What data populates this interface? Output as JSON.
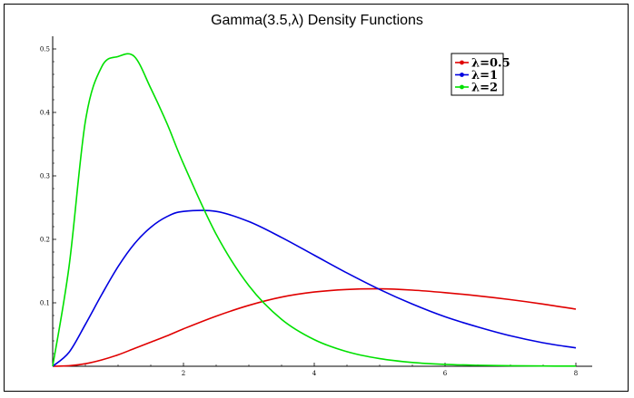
{
  "chart_data": {
    "type": "line",
    "title": "Gamma(3.5,λ) Density Functions",
    "xlabel": "",
    "ylabel": "",
    "xlim": [
      0,
      8.25
    ],
    "ylim": [
      0,
      0.52
    ],
    "grid": false,
    "legend_position": "top-right",
    "x_ticks": [
      {
        "value": 2,
        "label": "2"
      },
      {
        "value": 4,
        "label": "4"
      },
      {
        "value": 6,
        "label": "6"
      },
      {
        "value": 8,
        "label": "8"
      }
    ],
    "y_ticks": [
      {
        "value": 0.1,
        "label": "0.1"
      },
      {
        "value": 0.2,
        "label": "0.2"
      },
      {
        "value": 0.3,
        "label": "0.3"
      },
      {
        "value": 0.4,
        "label": "0.4"
      },
      {
        "value": 0.5,
        "label": "0.5"
      }
    ],
    "x": [
      0,
      0.25,
      0.5,
      0.75,
      1,
      1.25,
      1.5,
      1.75,
      2,
      2.5,
      3,
      3.5,
      4,
      4.5,
      5,
      5.5,
      6,
      6.5,
      7,
      7.5,
      8
    ],
    "series": [
      {
        "name": "λ=0.5",
        "color": "#e00000",
        "values": [
          0,
          0.0008,
          0.004,
          0.01,
          0.018,
          0.028,
          0.038,
          0.048,
          0.059,
          0.079,
          0.096,
          0.109,
          0.117,
          0.121,
          0.122,
          0.12,
          0.116,
          0.111,
          0.105,
          0.098,
          0.09
        ]
      },
      {
        "name": "λ=1",
        "color": "#0000e0",
        "values": [
          0,
          0.022,
          0.066,
          0.113,
          0.157,
          0.193,
          0.219,
          0.236,
          0.244,
          0.244,
          0.228,
          0.203,
          0.175,
          0.147,
          0.121,
          0.098,
          0.078,
          0.062,
          0.048,
          0.037,
          0.029
        ]
      },
      {
        "name": "λ=2",
        "color": "#00e000",
        "values": [
          0,
          0.157,
          0.386,
          0.472,
          0.488,
          0.488,
          0.438,
          0.382,
          0.319,
          0.208,
          0.127,
          0.074,
          0.042,
          0.023,
          0.012,
          0.006,
          0.003,
          0.0016,
          0.0008,
          0.0004,
          0.0002
        ]
      }
    ]
  }
}
